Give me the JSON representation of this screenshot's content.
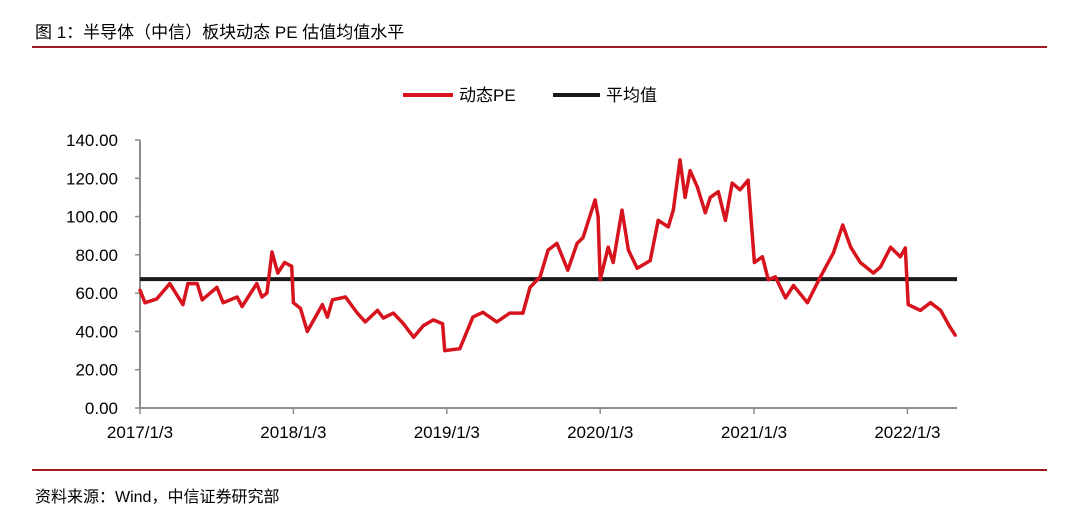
{
  "header": {
    "title": "图 1：半导体（中信）板块动态 PE 估值均值水平"
  },
  "footer": {
    "source": "资料来源：Wind，中信证券研究部"
  },
  "chart_data": {
    "type": "line",
    "title": "",
    "xlabel": "",
    "ylabel": "",
    "ylim": [
      0,
      140
    ],
    "xlim": [
      "2017-01-03",
      "2022-05-01"
    ],
    "y_ticks": [
      "0.00",
      "20.00",
      "40.00",
      "60.00",
      "80.00",
      "100.00",
      "120.00",
      "140.00"
    ],
    "x_ticks": [
      {
        "date": "2017-01-03",
        "label": "2017/1/3"
      },
      {
        "date": "2018-01-03",
        "label": "2018/1/3"
      },
      {
        "date": "2019-01-03",
        "label": "2019/1/3"
      },
      {
        "date": "2020-01-03",
        "label": "2020/1/3"
      },
      {
        "date": "2021-01-03",
        "label": "2021/1/3"
      },
      {
        "date": "2022-01-03",
        "label": "2022/1/3"
      }
    ],
    "grid": false,
    "legend_position": "top-center",
    "colors": {
      "pe": "#d7141e",
      "mean": "#1a1a1a",
      "rule": "#9e1b22"
    },
    "series": [
      {
        "name": "动态PE",
        "points": [
          [
            "2017-01-03",
            61.6
          ],
          [
            "2017-01-15",
            55
          ],
          [
            "2017-02-12",
            57
          ],
          [
            "2017-03-15",
            65
          ],
          [
            "2017-04-15",
            54
          ],
          [
            "2017-04-27",
            65
          ],
          [
            "2017-05-19",
            65
          ],
          [
            "2017-05-31",
            56.5
          ],
          [
            "2017-07-05",
            63
          ],
          [
            "2017-07-20",
            55
          ],
          [
            "2017-08-22",
            58
          ],
          [
            "2017-09-03",
            53
          ],
          [
            "2017-10-08",
            65
          ],
          [
            "2017-10-20",
            58
          ],
          [
            "2017-11-01",
            60
          ],
          [
            "2017-11-13",
            81.5
          ],
          [
            "2017-11-27",
            70.5
          ],
          [
            "2017-12-13",
            76
          ],
          [
            "2017-12-30",
            74
          ],
          [
            "2018-01-03",
            55
          ],
          [
            "2018-01-20",
            52
          ],
          [
            "2018-02-05",
            40
          ],
          [
            "2018-03-13",
            54
          ],
          [
            "2018-03-25",
            47.5
          ],
          [
            "2018-04-06",
            56.5
          ],
          [
            "2018-05-07",
            58
          ],
          [
            "2018-06-04",
            49.6
          ],
          [
            "2018-06-23",
            45
          ],
          [
            "2018-07-22",
            51
          ],
          [
            "2018-08-05",
            47
          ],
          [
            "2018-08-29",
            49.6
          ],
          [
            "2018-09-22",
            44
          ],
          [
            "2018-10-16",
            37
          ],
          [
            "2018-11-08",
            43
          ],
          [
            "2018-12-02",
            46
          ],
          [
            "2018-12-24",
            44
          ],
          [
            "2018-12-29",
            30
          ],
          [
            "2019-02-03",
            31
          ],
          [
            "2019-03-06",
            47.5
          ],
          [
            "2019-03-30",
            50
          ],
          [
            "2019-05-02",
            45
          ],
          [
            "2019-06-02",
            49.6
          ],
          [
            "2019-07-03",
            49.6
          ],
          [
            "2019-07-20",
            63
          ],
          [
            "2019-08-13",
            68.5
          ],
          [
            "2019-09-01",
            82.5
          ],
          [
            "2019-09-22",
            86
          ],
          [
            "2019-10-18",
            72
          ],
          [
            "2019-11-09",
            86
          ],
          [
            "2019-11-23",
            89
          ],
          [
            "2019-12-22",
            108.7
          ],
          [
            "2019-12-29",
            100
          ],
          [
            "2020-01-03",
            67
          ],
          [
            "2020-01-22",
            84
          ],
          [
            "2020-02-03",
            76
          ],
          [
            "2020-02-24",
            103.4
          ],
          [
            "2020-03-10",
            82.5
          ],
          [
            "2020-03-31",
            73
          ],
          [
            "2020-05-01",
            77
          ],
          [
            "2020-05-20",
            98
          ],
          [
            "2020-06-13",
            94.6
          ],
          [
            "2020-06-25",
            103.4
          ],
          [
            "2020-07-11",
            129.6
          ],
          [
            "2020-07-23",
            110
          ],
          [
            "2020-08-04",
            124
          ],
          [
            "2020-08-21",
            115.5
          ],
          [
            "2020-09-09",
            102
          ],
          [
            "2020-09-21",
            110
          ],
          [
            "2020-10-10",
            113
          ],
          [
            "2020-10-27",
            98
          ],
          [
            "2020-11-12",
            117.5
          ],
          [
            "2020-12-01",
            114
          ],
          [
            "2020-12-20",
            119
          ],
          [
            "2021-01-04",
            76
          ],
          [
            "2021-01-23",
            79
          ],
          [
            "2021-02-06",
            67
          ],
          [
            "2021-02-23",
            68.5
          ],
          [
            "2021-03-19",
            57.5
          ],
          [
            "2021-04-07",
            64
          ],
          [
            "2021-05-10",
            55
          ],
          [
            "2021-06-10",
            68.5
          ],
          [
            "2021-07-11",
            81
          ],
          [
            "2021-08-02",
            95.6
          ],
          [
            "2021-08-21",
            84
          ],
          [
            "2021-09-13",
            76
          ],
          [
            "2021-10-14",
            70.5
          ],
          [
            "2021-10-31",
            73.7
          ],
          [
            "2021-11-24",
            84
          ],
          [
            "2021-12-17",
            79
          ],
          [
            "2021-12-29",
            83.6
          ],
          [
            "2022-01-05",
            54
          ],
          [
            "2022-02-03",
            51
          ],
          [
            "2022-02-27",
            55
          ],
          [
            "2022-03-23",
            51
          ],
          [
            "2022-04-15",
            42
          ],
          [
            "2022-04-27",
            38
          ]
        ]
      },
      {
        "name": "平均值",
        "value": 67.3
      }
    ]
  }
}
